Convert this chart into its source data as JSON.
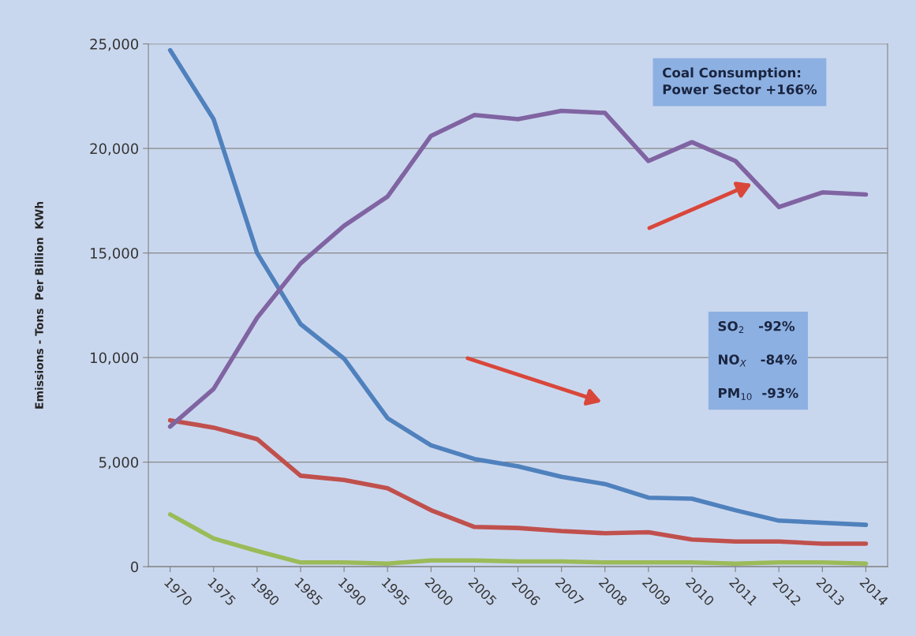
{
  "chart_data": {
    "type": "line",
    "ylabel": "Emissions - Tons  Per Billion  KWh",
    "categories": [
      "1970",
      "1975",
      "1980",
      "1985",
      "1990",
      "1995",
      "2000",
      "2005",
      "2006",
      "2007",
      "2008",
      "2009",
      "2010",
      "2011",
      "2012",
      "2013",
      "2014"
    ],
    "series": [
      {
        "color": "#4f81bd",
        "values": [
          24700,
          21400,
          15000,
          11600,
          9950,
          7100,
          5800,
          5150,
          4800,
          4300,
          3950,
          3300,
          3250,
          2700,
          2200,
          2100,
          2000
        ]
      },
      {
        "color": "#c0504d",
        "values": [
          7000,
          6650,
          6100,
          4350,
          4150,
          3750,
          2700,
          1900,
          1850,
          1700,
          1600,
          1650,
          1300,
          1200,
          1200,
          1100,
          1100
        ]
      },
      {
        "color": "#9bbb59",
        "values": [
          2500,
          1350,
          750,
          200,
          200,
          150,
          300,
          300,
          250,
          250,
          200,
          200,
          200,
          150,
          200,
          200,
          150
        ]
      },
      {
        "color": "#8064a2",
        "values": [
          6700,
          8500,
          11900,
          14500,
          16300,
          17700,
          20600,
          21600,
          21400,
          21800,
          21700,
          19400,
          20300,
          19400,
          17200,
          17900,
          17800
        ]
      }
    ],
    "ylim": [
      0,
      25000
    ],
    "yticks": [
      {
        "value": 0,
        "label": "0"
      },
      {
        "value": 5000,
        "label": "5,000"
      },
      {
        "value": 10000,
        "label": "10,000"
      },
      {
        "value": 15000,
        "label": "15,000"
      },
      {
        "value": 20000,
        "label": "20,000"
      },
      {
        "value": 25000,
        "label": "25,000"
      }
    ],
    "grid": "y",
    "legend": false,
    "marker": "none",
    "line_style": "solid",
    "annotations": [
      "Coal Consumption:\nPower Sector +166%",
      "SO$_{2}$   -92%\n\nNO$_{X}$   -84%\n\nPM$_{10}$  -93%"
    ]
  }
}
